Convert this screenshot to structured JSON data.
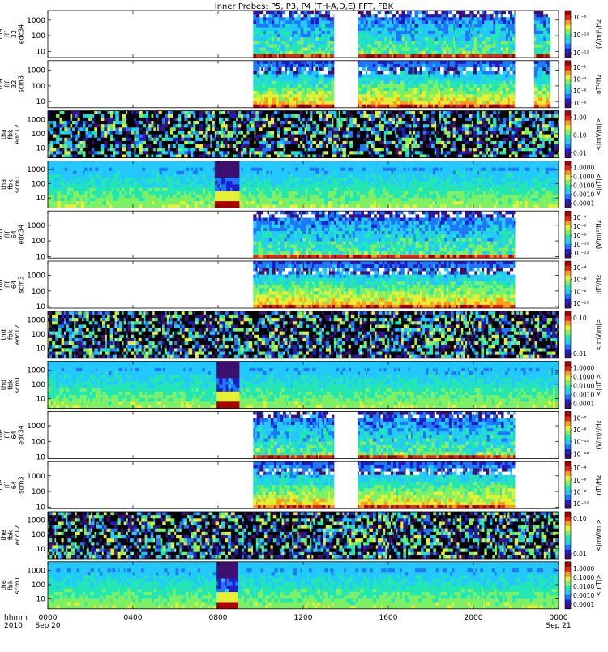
{
  "title": "Inner Probes: P5, P3, P4 (TH-A,D,E) FFT, FBK",
  "chart_data": {
    "type": "heatmap",
    "x_axis": {
      "row_labels": [
        "hhmm",
        "2010"
      ],
      "ticks": [
        {
          "value": 0,
          "label": "0000",
          "sublabel": "Sep 20"
        },
        {
          "value": 4,
          "label": "0400",
          "sublabel": ""
        },
        {
          "value": 8,
          "label": "0800",
          "sublabel": ""
        },
        {
          "value": 12,
          "label": "1200",
          "sublabel": ""
        },
        {
          "value": 16,
          "label": "1600",
          "sublabel": ""
        },
        {
          "value": 20,
          "label": "2000",
          "sublabel": ""
        },
        {
          "value": 24,
          "label": "0000",
          "sublabel": "Sep 21"
        }
      ],
      "range_hours": [
        0,
        24
      ]
    },
    "panels": [
      {
        "name_lines": [
          "tha",
          "fff",
          "32",
          "edc34"
        ],
        "kind": "fft_e",
        "yticks": [
          "1000",
          "100",
          "10"
        ],
        "ylim": [
          4,
          4096
        ],
        "log_y": true,
        "colorbar": {
          "unit": "(V/m)²/Hz",
          "labels": [
            "10⁻⁸",
            "10⁻¹⁰",
            "10⁻¹²"
          ]
        },
        "data_intervals_hours": [
          [
            9.65,
            13.45
          ],
          [
            14.55,
            21.95
          ],
          [
            22.85,
            23.6
          ]
        ]
      },
      {
        "name_lines": [
          "tha",
          "fff",
          "32",
          "scm3"
        ],
        "kind": "fft_b",
        "yticks": [
          "1000",
          "100",
          "10"
        ],
        "ylim": [
          4,
          4096
        ],
        "log_y": true,
        "colorbar": {
          "unit": "nT²/Hz",
          "labels": [
            "10⁻²",
            "10⁻⁴",
            "10⁻⁶",
            "10⁻⁸"
          ]
        },
        "data_intervals_hours": [
          [
            9.65,
            13.45
          ],
          [
            14.55,
            21.95
          ],
          [
            22.85,
            23.6
          ]
        ]
      },
      {
        "name_lines": [
          "tha",
          "fbk",
          "edc12"
        ],
        "kind": "fbk_e",
        "yticks": [
          "1000",
          "100",
          "10"
        ],
        "ylim": [
          2,
          4096
        ],
        "log_y": true,
        "colorbar": {
          "unit": "<|mV/m|>",
          "labels": [
            "1.00",
            "0.10",
            "0.01"
          ]
        },
        "data_intervals_hours": [
          [
            0,
            24
          ]
        ]
      },
      {
        "name_lines": [
          "tha",
          "fbk",
          "scm1"
        ],
        "kind": "fbk_b",
        "yticks": [
          "1000",
          "100",
          "10"
        ],
        "ylim": [
          2,
          4096
        ],
        "log_y": true,
        "colorbar": {
          "unit": "<|nT|>",
          "labels": [
            "1.0000",
            "0.1000",
            "0.0100",
            "0.0010",
            "0.0001"
          ]
        },
        "data_intervals_hours": [
          [
            0,
            24
          ]
        ]
      },
      {
        "name_lines": [
          "thd",
          "fff",
          "64",
          "edc34"
        ],
        "kind": "fft_e",
        "yticks": [
          "1000",
          "100",
          "10"
        ],
        "ylim": [
          8,
          8192
        ],
        "log_y": true,
        "colorbar": {
          "unit": "(V/m)²/Hz",
          "labels": [
            "10⁻⁴",
            "10⁻⁶",
            "10⁻⁸",
            "10⁻¹⁰",
            "10⁻¹²"
          ]
        },
        "data_intervals_hours": [
          [
            9.65,
            21.95
          ]
        ]
      },
      {
        "name_lines": [
          "thd",
          "fff",
          "64",
          "scm3"
        ],
        "kind": "fft_b",
        "yticks": [
          "1000",
          "100",
          "10"
        ],
        "ylim": [
          8,
          8192
        ],
        "log_y": true,
        "colorbar": {
          "unit": "nT²/Hz",
          "labels": [
            "10⁻⁴",
            "10⁻⁶",
            "10⁻⁸",
            "10⁻¹⁰"
          ]
        },
        "data_intervals_hours": [
          [
            9.65,
            21.95
          ]
        ]
      },
      {
        "name_lines": [
          "thd",
          "fbk",
          "edc12"
        ],
        "kind": "fbk_e",
        "yticks": [
          "1000",
          "100",
          "10"
        ],
        "ylim": [
          2,
          4096
        ],
        "log_y": true,
        "colorbar": {
          "unit": "<|mV/m|>",
          "labels": [
            "0.10",
            "0.01"
          ]
        },
        "data_intervals_hours": [
          [
            0,
            24
          ]
        ]
      },
      {
        "name_lines": [
          "thd",
          "fbk",
          "scm1"
        ],
        "kind": "fbk_b",
        "yticks": [
          "1000",
          "100",
          "10"
        ],
        "ylim": [
          2,
          4096
        ],
        "log_y": true,
        "colorbar": {
          "unit": "<|nT|>",
          "labels": [
            "1.0000",
            "0.1000",
            "0.0100",
            "0.0010",
            "0.0001"
          ]
        },
        "data_intervals_hours": [
          [
            0,
            24
          ]
        ]
      },
      {
        "name_lines": [
          "the",
          "fff",
          "64",
          "edc34"
        ],
        "kind": "fft_e",
        "yticks": [
          "1000",
          "100",
          "10"
        ],
        "ylim": [
          8,
          8192
        ],
        "log_y": true,
        "colorbar": {
          "unit": "(V/m)²/Hz",
          "labels": [
            "10⁻⁶",
            "10⁻⁸",
            "10⁻¹⁰",
            "10⁻¹²"
          ]
        },
        "data_intervals_hours": [
          [
            9.65,
            13.45
          ],
          [
            14.55,
            21.95
          ]
        ]
      },
      {
        "name_lines": [
          "the",
          "fff",
          "64",
          "scm3"
        ],
        "kind": "fft_b",
        "yticks": [
          "1000",
          "100",
          "10"
        ],
        "ylim": [
          8,
          8192
        ],
        "log_y": true,
        "colorbar": {
          "unit": "nT²/Hz",
          "labels": [
            "10⁻⁴",
            "10⁻⁶",
            "10⁻⁸",
            "10⁻¹⁰"
          ]
        },
        "data_intervals_hours": [
          [
            9.65,
            13.45
          ],
          [
            14.55,
            21.95
          ]
        ]
      },
      {
        "name_lines": [
          "the",
          "fbk",
          "edc12"
        ],
        "kind": "fbk_e",
        "yticks": [
          "1000",
          "100",
          "10"
        ],
        "ylim": [
          2,
          4096
        ],
        "log_y": true,
        "colorbar": {
          "unit": "<|mV/m|>",
          "labels": [
            "0.10",
            "0.01"
          ]
        },
        "data_intervals_hours": [
          [
            0,
            24
          ]
        ]
      },
      {
        "name_lines": [
          "the",
          "fbk",
          "scm1"
        ],
        "kind": "fbk_b",
        "yticks": [
          "1000",
          "100",
          "10"
        ],
        "ylim": [
          2,
          4096
        ],
        "log_y": true,
        "colorbar": {
          "unit": "<|nT|>",
          "labels": [
            "1.0000",
            "0.1000",
            "0.0100",
            "0.0010",
            "0.0001"
          ]
        },
        "data_intervals_hours": [
          [
            0,
            24
          ]
        ]
      }
    ],
    "colormap": [
      "#3d0f6e",
      "#1e1ec8",
      "#1e78ff",
      "#22c8ff",
      "#22e6b4",
      "#7ef064",
      "#e6f032",
      "#ff9c1e",
      "#e62814",
      "#aa0000"
    ]
  }
}
